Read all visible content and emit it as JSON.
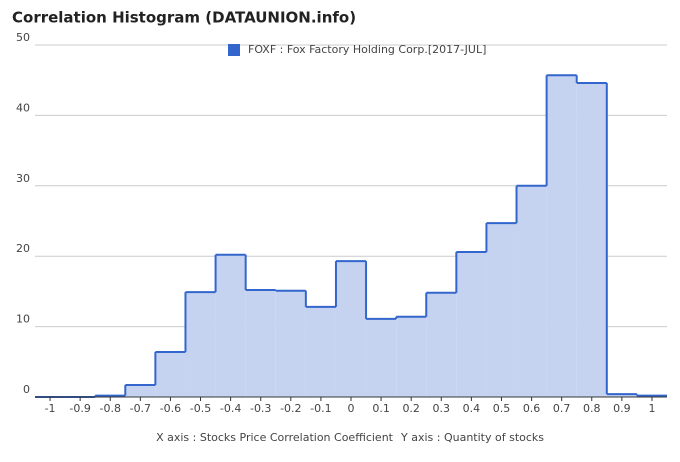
{
  "chart_data": {
    "type": "histogram",
    "title": "Correlation Histogram (DATAUNION.info)",
    "x_label": "X axis : Stocks Price Correlation Coefficient",
    "y_label": "Y axis : Quantity of stocks",
    "series": [
      {
        "name": "FOXF : Fox Factory Holding Corp.[2017-JUL]",
        "color": "#3366cc",
        "fill": "#c5d3f0",
        "bins": [
          -1.05,
          -0.95,
          -0.85,
          -0.75,
          -0.65,
          -0.55,
          -0.45,
          -0.35,
          -0.25,
          -0.15,
          -0.05,
          0.05,
          0.15,
          0.25,
          0.35,
          0.45,
          0.55,
          0.65,
          0.75,
          0.85,
          0.95,
          1.05
        ],
        "values": [
          0,
          0,
          0.2,
          1.7,
          6.4,
          14.9,
          20.2,
          15.2,
          15.1,
          12.8,
          19.3,
          11.1,
          11.4,
          14.8,
          20.6,
          24.7,
          30,
          45.7,
          44.6,
          0.4,
          0.2
        ]
      }
    ],
    "xlim": [
      -1.05,
      1.05
    ],
    "xticks": [
      -1,
      -0.9,
      -0.8,
      -0.7,
      -0.6,
      -0.5,
      -0.4,
      -0.3,
      -0.2,
      -0.1,
      0,
      0.1,
      0.2,
      0.3,
      0.4,
      0.5,
      0.6,
      0.7,
      0.8,
      0.9,
      1
    ],
    "ylim": [
      0,
      50
    ],
    "yticks": [
      0,
      10,
      20,
      30,
      40,
      50
    ],
    "grid": true
  }
}
